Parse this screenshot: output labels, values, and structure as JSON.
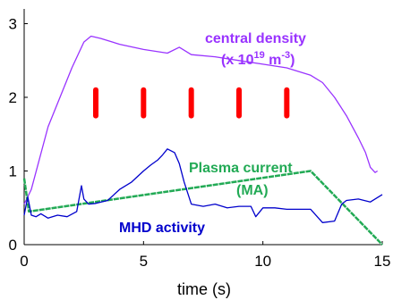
{
  "chart_data": {
    "type": "line",
    "xlabel": "time (s)",
    "ylabel": "",
    "xlim": [
      0,
      15
    ],
    "ylim": [
      0,
      3.2
    ],
    "xticks": [
      0,
      5,
      10,
      15
    ],
    "yticks": [
      0,
      1,
      2,
      3
    ],
    "grid": false,
    "legend": "none",
    "series": [
      {
        "name": "central density (x 10^19 m^-3)",
        "color": "#9933ff",
        "x": [
          0,
          0.3,
          1,
          2,
          2.5,
          2.8,
          3.2,
          4,
          5,
          6,
          6.5,
          7,
          8,
          9,
          10,
          11,
          12,
          12.5,
          13,
          13.5,
          14,
          14.3,
          14.5,
          14.7,
          14.8
        ],
        "values": [
          0.55,
          0.75,
          1.6,
          2.4,
          2.75,
          2.83,
          2.8,
          2.72,
          2.65,
          2.6,
          2.68,
          2.58,
          2.55,
          2.5,
          2.45,
          2.4,
          2.3,
          2.2,
          2.0,
          1.75,
          1.45,
          1.25,
          1.05,
          0.98,
          1.0
        ]
      },
      {
        "name": "Plasma current (MA)",
        "color": "#22aa55",
        "x": [
          0,
          0.2,
          12,
          15
        ],
        "values": [
          0.9,
          0.45,
          1.0,
          0
        ]
      },
      {
        "name": "MHD activity",
        "color": "#0000cc",
        "x": [
          0,
          0.15,
          0.3,
          0.5,
          0.7,
          1,
          1.4,
          1.8,
          2.2,
          2.4,
          2.5,
          2.7,
          3,
          3.5,
          4,
          4.5,
          5,
          5.3,
          5.6,
          5.8,
          6,
          6.3,
          6.5,
          6.7,
          7,
          7.5,
          8,
          8.5,
          9,
          9.5,
          9.7,
          10,
          10.5,
          11,
          12,
          12.5,
          13,
          13.3,
          13.5,
          14,
          14.5,
          15
        ],
        "values": [
          0.4,
          0.65,
          0.4,
          0.38,
          0.42,
          0.36,
          0.4,
          0.38,
          0.45,
          0.8,
          0.62,
          0.55,
          0.56,
          0.6,
          0.75,
          0.85,
          1.0,
          1.08,
          1.15,
          1.22,
          1.3,
          1.25,
          1.1,
          0.85,
          0.55,
          0.52,
          0.55,
          0.5,
          0.52,
          0.52,
          0.38,
          0.5,
          0.5,
          0.48,
          0.48,
          0.3,
          0.32,
          0.55,
          0.6,
          0.62,
          0.58,
          0.68
        ]
      }
    ],
    "annotations": [
      {
        "text": "central density",
        "color": "#9933ff"
      },
      {
        "text": "(x 10",
        "sup": "19",
        "text2": " m",
        "sup2": "-3",
        "text3": ")",
        "color": "#9933ff"
      },
      {
        "text": "Plasma current",
        "color": "#22aa55"
      },
      {
        "text": "(MA)",
        "color": "#22aa55"
      },
      {
        "text": "MHD activity",
        "color": "#0000cc"
      }
    ],
    "markers": {
      "color": "#ff0000",
      "x": [
        3,
        5,
        7,
        9,
        11
      ],
      "y_range": [
        1.75,
        2.1
      ]
    }
  }
}
